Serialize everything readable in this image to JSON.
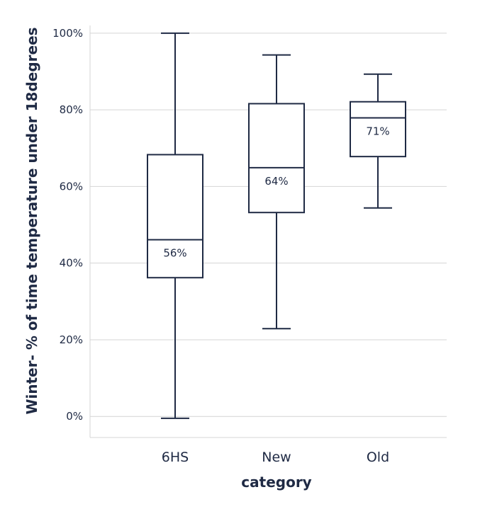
{
  "chart_data": {
    "type": "box",
    "title": "",
    "xlabel": "category",
    "ylabel": "Winter- % of time temperature under 18degrees",
    "ylim": [
      -0.055,
      1.02
    ],
    "yticks": [
      0,
      0.2,
      0.4,
      0.6,
      0.8,
      1.0
    ],
    "ytick_labels": [
      "0%",
      "20%",
      "40%",
      "60%",
      "80%",
      "100%"
    ],
    "grid": "horizontal",
    "categories": [
      "6HS",
      "New",
      "Old"
    ],
    "boxes": [
      {
        "category": "6HS",
        "min": -0.005,
        "q1": 0.362,
        "median": 0.461,
        "q3": 0.683,
        "max": 1.0,
        "label": "56%"
      },
      {
        "category": "New",
        "min": 0.229,
        "q1": 0.532,
        "median": 0.649,
        "q3": 0.816,
        "max": 0.943,
        "label": "64%"
      },
      {
        "category": "Old",
        "min": 0.544,
        "q1": 0.678,
        "median": 0.779,
        "q3": 0.821,
        "max": 0.893,
        "label": "71%"
      }
    ],
    "colors": {
      "stroke": "#1f2a44",
      "grid": "#d4d4d4",
      "background": "#ffffff"
    }
  }
}
